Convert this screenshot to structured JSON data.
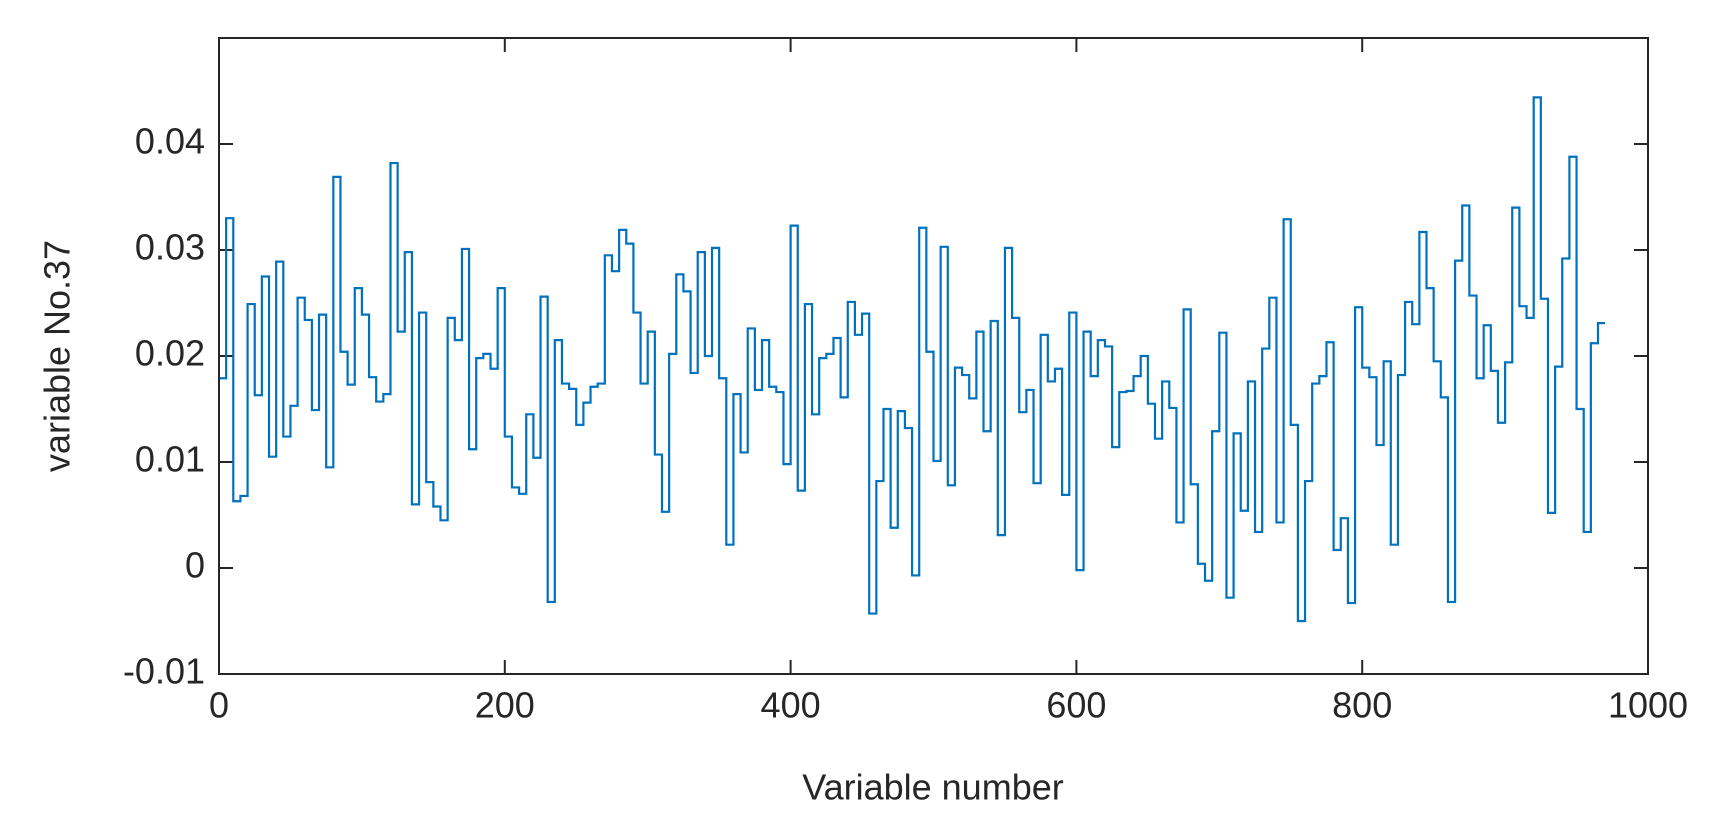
{
  "chart_data": {
    "type": "line",
    "step": "post",
    "xlabel": "Variable number",
    "ylabel": "variable No.37",
    "xlim": [
      0,
      1000
    ],
    "xticks": [
      0,
      200,
      400,
      600,
      800,
      1000
    ],
    "ylim": [
      -0.01,
      0.05
    ],
    "yticks": [
      -0.01,
      0,
      0.01,
      0.02,
      0.03,
      0.04
    ],
    "box": true,
    "x": [
      0,
      5,
      10,
      15,
      20,
      25,
      30,
      35,
      40,
      45,
      50,
      55,
      60,
      65,
      70,
      75,
      80,
      85,
      90,
      95,
      100,
      105,
      110,
      115,
      120,
      125,
      130,
      135,
      140,
      145,
      150,
      155,
      160,
      165,
      170,
      175,
      180,
      185,
      190,
      195,
      200,
      205,
      210,
      215,
      220,
      225,
      230,
      235,
      240,
      245,
      250,
      255,
      260,
      265,
      270,
      275,
      280,
      285,
      290,
      295,
      300,
      305,
      310,
      315,
      320,
      325,
      330,
      335,
      340,
      345,
      350,
      355,
      360,
      365,
      370,
      375,
      380,
      385,
      390,
      395,
      400,
      405,
      410,
      415,
      420,
      425,
      430,
      435,
      440,
      445,
      450,
      455,
      460,
      465,
      470,
      475,
      480,
      485,
      490,
      495,
      500,
      505,
      510,
      515,
      520,
      525,
      530,
      535,
      540,
      545,
      550,
      555,
      560,
      565,
      570,
      575,
      580,
      585,
      590,
      595,
      600,
      605,
      610,
      615,
      620,
      625,
      630,
      635,
      640,
      645,
      650,
      655,
      660,
      665,
      670,
      675,
      680,
      685,
      690,
      695,
      700,
      705,
      710,
      715,
      720,
      725,
      730,
      735,
      740,
      745,
      750,
      755,
      760,
      765,
      770,
      775,
      780,
      785,
      790,
      795,
      800,
      805,
      810,
      815,
      820,
      825,
      830,
      835,
      840,
      845,
      850,
      855,
      860,
      865,
      870,
      875,
      880,
      885,
      890,
      895,
      900,
      905,
      910,
      915,
      920,
      925,
      930,
      935,
      940,
      945,
      950,
      955,
      960,
      965
    ],
    "series": [
      {
        "color": "#0072bd",
        "values": [
          0.0179,
          0.033,
          0.0063,
          0.0068,
          0.0249,
          0.0163,
          0.0275,
          0.0105,
          0.0289,
          0.0124,
          0.0153,
          0.0255,
          0.0234,
          0.0149,
          0.0239,
          0.0095,
          0.0369,
          0.0204,
          0.0173,
          0.0264,
          0.0239,
          0.018,
          0.0157,
          0.0164,
          0.0382,
          0.0223,
          0.0298,
          0.006,
          0.0241,
          0.0081,
          0.0058,
          0.0045,
          0.0236,
          0.0215,
          0.0301,
          0.0112,
          0.0198,
          0.0202,
          0.0188,
          0.0264,
          0.0124,
          0.0076,
          0.007,
          0.0145,
          0.0104,
          0.0256,
          -0.0032,
          0.0215,
          0.0174,
          0.0169,
          0.0135,
          0.0156,
          0.0171,
          0.0174,
          0.0295,
          0.028,
          0.0319,
          0.0306,
          0.0241,
          0.0174,
          0.0223,
          0.0107,
          0.0053,
          0.0202,
          0.0277,
          0.0261,
          0.0184,
          0.0298,
          0.02,
          0.0302,
          0.0179,
          0.0022,
          0.0164,
          0.0109,
          0.0226,
          0.0168,
          0.0215,
          0.0171,
          0.0166,
          0.0098,
          0.0323,
          0.0073,
          0.0249,
          0.0145,
          0.0198,
          0.0202,
          0.0217,
          0.0161,
          0.0251,
          0.022,
          0.024,
          -0.0043,
          0.0082,
          0.015,
          0.0038,
          0.0148,
          0.0132,
          -0.0007,
          0.0321,
          0.0204,
          0.0101,
          0.0303,
          0.0078,
          0.0189,
          0.0182,
          0.016,
          0.0223,
          0.0129,
          0.0233,
          0.0031,
          0.0302,
          0.0236,
          0.0147,
          0.0168,
          0.008,
          0.022,
          0.0176,
          0.0188,
          0.0069,
          0.0241,
          -0.0002,
          0.0223,
          0.0181,
          0.0215,
          0.0209,
          0.0114,
          0.0166,
          0.0167,
          0.0181,
          0.02,
          0.0155,
          0.0122,
          0.0176,
          0.0151,
          0.0043,
          0.0244,
          0.0079,
          0.0004,
          -0.0012,
          0.0129,
          0.0222,
          -0.0028,
          0.0127,
          0.0054,
          0.0176,
          0.0034,
          0.0207,
          0.0255,
          0.0043,
          0.0329,
          0.0135,
          -0.005,
          0.0082,
          0.0174,
          0.0181,
          0.0213,
          0.0017,
          0.0047,
          -0.0033,
          0.0246,
          0.0189,
          0.018,
          0.0116,
          0.0195,
          0.0022,
          0.0182,
          0.0251,
          0.023,
          0.0317,
          0.0264,
          0.0195,
          0.0161,
          -0.0032,
          0.029,
          0.0342,
          0.0257,
          0.0179,
          0.0229,
          0.0186,
          0.0137,
          0.0194,
          0.034,
          0.0247,
          0.0236,
          0.0444,
          0.0254,
          0.0052,
          0.019,
          0.0292,
          0.0388,
          0.015,
          0.0034,
          0.0212,
          0.0231
        ]
      }
    ]
  }
}
